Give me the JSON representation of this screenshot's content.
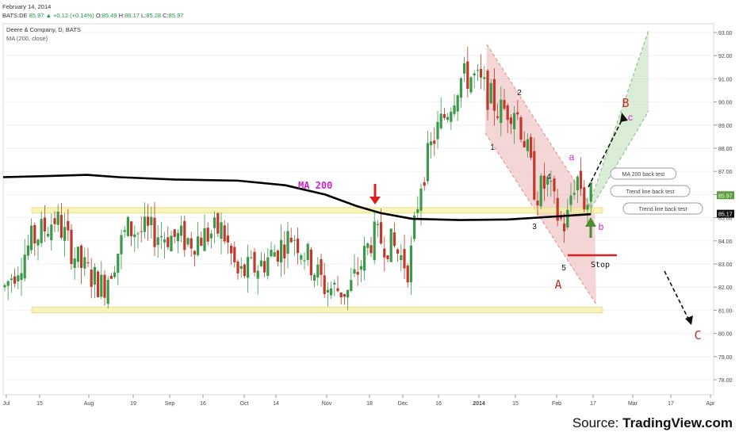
{
  "header": {
    "date": "February 14, 2014",
    "symbol": "BATS:DE",
    "last": "85.97",
    "change": "+0.12 (+0.14%)",
    "o_label": "O:",
    "o": "85.49",
    "h_label": "H:",
    "h": "86.17",
    "l_label": "L:",
    "l": "85.28",
    "c_label": "C:",
    "c": "85.97"
  },
  "legend": {
    "title": "Deere & Company, D, BATS",
    "indicator": "MA (200, close)"
  },
  "footer": {
    "prefix": "Source: ",
    "brand": "TradingView.com"
  },
  "colors": {
    "up": "#3a9a4a",
    "down": "#c0392b",
    "ma": "#000000",
    "zone": "#f3f0a0",
    "red_channel": "#e8a4a4",
    "green_channel": "#b9dcb0",
    "accent_red": "#e02020",
    "accent_purple": "#cc22cc",
    "accent_green": "#4f8a2e"
  },
  "chart_data": {
    "type": "candlestick",
    "price_axis": {
      "ticks": [
        "93.00",
        "92.00",
        "91.00",
        "90.00",
        "89.00",
        "88.00",
        "87.00",
        "86.00",
        "85.00",
        "84.00",
        "83.00",
        "82.00",
        "81.00",
        "80.00",
        "79.00",
        "78.00"
      ],
      "current_tag": "85.97",
      "ma_tag": "85.17"
    },
    "time_axis": {
      "ticks": [
        "Jul",
        "15",
        "Aug",
        "19",
        "Sep",
        "16",
        "Oct",
        "14",
        "Nov",
        "18",
        "Dec",
        "16",
        "2014",
        "15",
        "Feb",
        "17",
        "Mar",
        "17",
        "Apr"
      ]
    },
    "ylim": [
      77.5,
      93.2
    ],
    "ma_label": "MA 200",
    "annotations": {
      "waves": [
        "1",
        "2",
        "3",
        "4",
        "5"
      ],
      "abc": [
        "A",
        "B",
        "C"
      ],
      "abc_small": [
        "a",
        "b",
        "c"
      ],
      "stop": "Stop",
      "callouts": [
        "MA 200 back test",
        "Trend line back test",
        "Trend line back test"
      ]
    },
    "support_zone_price": 81.0,
    "resistance_zone_price": 85.3,
    "ma_series": [
      {
        "x": "Jul",
        "y": 86.8
      },
      {
        "x": "Aug",
        "y": 86.85
      },
      {
        "x": "Sep",
        "y": 86.6
      },
      {
        "x": "Oct",
        "y": 86.55
      },
      {
        "x": "Nov",
        "y": 85.6
      },
      {
        "x": "Dec",
        "y": 84.95
      },
      {
        "x": "2014",
        "y": 84.9
      },
      {
        "x": "Feb",
        "y": 85.17
      }
    ]
  }
}
